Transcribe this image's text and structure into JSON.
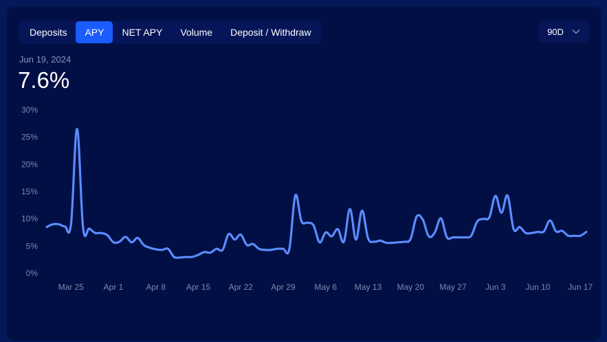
{
  "tabs": [
    {
      "label": "Deposits",
      "active": false
    },
    {
      "label": "APY",
      "active": true
    },
    {
      "label": "NET APY",
      "active": false
    },
    {
      "label": "Volume",
      "active": false
    },
    {
      "label": "Deposit / Withdraw",
      "active": false
    }
  ],
  "range_selector": {
    "value": "90D",
    "icon": "chevron-down-icon"
  },
  "selected_date": "Jun 19, 2024",
  "current_value": "7.6%",
  "colors": {
    "line": "#5b8cff",
    "accent": "#1a5cff",
    "background": "#020f45"
  },
  "chart_data": {
    "type": "line",
    "title": "",
    "xlabel": "",
    "ylabel": "",
    "x_tick_labels": [
      "Mar 25",
      "Apr 1",
      "Apr 8",
      "Apr 15",
      "Apr 22",
      "Apr 29",
      "May 6",
      "May 13",
      "May 20",
      "May 27",
      "Jun 3",
      "Jun 10",
      "Jun 17"
    ],
    "y_tick_labels": [
      "0%",
      "5%",
      "10%",
      "15%",
      "20%",
      "25%",
      "30%"
    ],
    "ylim": [
      0,
      30
    ],
    "grid": false,
    "x_start": "Mar 21",
    "x_end": "Jun 19",
    "series": [
      {
        "name": "",
        "values": [
          8.5,
          9.0,
          9.0,
          8.6,
          9.0,
          26.5,
          8.3,
          8.2,
          7.4,
          7.4,
          7.0,
          5.7,
          5.8,
          6.7,
          5.7,
          6.5,
          5.2,
          4.7,
          4.4,
          4.3,
          4.5,
          3.0,
          2.9,
          3.0,
          3.0,
          3.4,
          3.9,
          3.8,
          4.5,
          4.3,
          7.2,
          6.2,
          7.1,
          5.2,
          5.4,
          4.5,
          4.3,
          4.3,
          4.5,
          4.5,
          4.4,
          14.3,
          9.6,
          9.3,
          8.8,
          5.7,
          7.5,
          6.8,
          8.1,
          5.8,
          11.8,
          6.2,
          11.5,
          6.4,
          5.8,
          6.0,
          5.6,
          5.6,
          5.7,
          5.8,
          6.3,
          10.4,
          9.9,
          6.8,
          7.5,
          10.1,
          6.6,
          6.6,
          6.6,
          6.6,
          6.9,
          9.5,
          10.0,
          10.3,
          14.2,
          11.1,
          14.3,
          8.1,
          8.5,
          7.4,
          7.4,
          7.6,
          7.7,
          9.7,
          7.7,
          7.8,
          6.9,
          6.9,
          6.9,
          7.6
        ]
      }
    ]
  }
}
